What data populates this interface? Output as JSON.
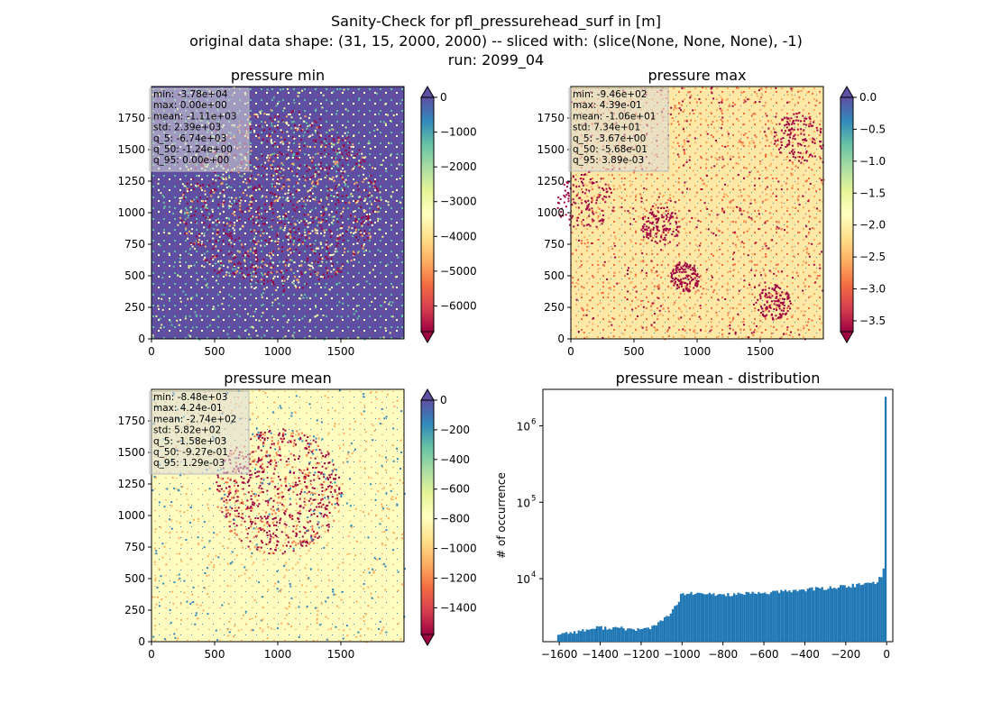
{
  "figure": {
    "title_lines": [
      "Sanity-Check for pfl_pressurehead_surf in [m]",
      "original data shape: (31, 15, 2000, 2000) -- sliced with: (slice(None, None, None), -1)",
      "run: 2099_04"
    ]
  },
  "colors": {
    "spectral": [
      "#9e0142",
      "#d53e4f",
      "#f46d43",
      "#fdae61",
      "#fee08b",
      "#ffffbf",
      "#e6f598",
      "#abdda4",
      "#66c2a5",
      "#3288bd",
      "#5e4fa2"
    ],
    "hist_bar": "#1f77b4",
    "stats_box_bg": "#d9d9d9"
  },
  "chart_data": [
    {
      "id": "pmin",
      "type": "heatmap",
      "title": "pressure min",
      "xlim": [
        0,
        2000
      ],
      "ylim": [
        0,
        2000
      ],
      "xticks": [
        0,
        500,
        1000,
        1500
      ],
      "yticks": [
        0,
        250,
        500,
        750,
        1000,
        1250,
        1500,
        1750
      ],
      "dominant": "low-pressure cluster in center, mostly near-zero (blue) elsewhere",
      "stats": [
        "min: -3.78e+04",
        "max: 0.00e+00",
        "mean: -1.11e+03",
        "std: 2.39e+03",
        "q_5: -6.74e+03",
        "q_50: -1.24e+00",
        "q_95: 0.00e+00"
      ],
      "colorbar": {
        "vmin": -6740,
        "vmax": 0,
        "ticks": [
          0,
          -1000,
          -2000,
          -3000,
          -4000,
          -5000,
          -6000
        ],
        "tick_labels": [
          "0",
          "−1000",
          "−2000",
          "−3000",
          "−4000",
          "−5000",
          "−6000"
        ],
        "extend": "both"
      }
    },
    {
      "id": "pmax",
      "type": "heatmap",
      "title": "pressure max",
      "xlim": [
        0,
        2000
      ],
      "ylim": [
        0,
        2000
      ],
      "xticks": [
        0,
        500,
        1000,
        1500
      ],
      "yticks": [
        0,
        250,
        500,
        750,
        1000,
        1250,
        1500,
        1750
      ],
      "dominant": "mostly light yellow/orange with dark-red patches",
      "stats": [
        "min: -9.46e+02",
        "max: 4.39e-01",
        "mean: -1.06e+01",
        "std: 7.34e+01",
        "q_5: -3.67e+00",
        "q_50: -5.68e-01",
        "q_95: 3.89e-03"
      ],
      "colorbar": {
        "vmin": -3.67,
        "vmax": 0,
        "ticks": [
          0.0,
          -0.5,
          -1.0,
          -1.5,
          -2.0,
          -2.5,
          -3.0,
          -3.5
        ],
        "tick_labels": [
          "0.0",
          "−0.5",
          "−1.0",
          "−1.5",
          "−2.0",
          "−2.5",
          "−3.0",
          "−3.5"
        ],
        "extend": "both"
      }
    },
    {
      "id": "pmean",
      "type": "heatmap",
      "title": "pressure mean",
      "xlim": [
        0,
        2000
      ],
      "ylim": [
        0,
        2000
      ],
      "xticks": [
        0,
        500,
        1000,
        1500
      ],
      "yticks": [
        0,
        250,
        500,
        750,
        1000,
        1250,
        1500,
        1750
      ],
      "dominant": "mostly light yellow with dark-red cluster in center",
      "stats": [
        "min: -8.48e+03",
        "max: 4.24e-01",
        "mean: -2.74e+02",
        "std: 5.82e+02",
        "q_5: -1.58e+03",
        "q_50: -9.27e-01",
        "q_95: 1.29e-03"
      ],
      "colorbar": {
        "vmin": -1580,
        "vmax": 0,
        "ticks": [
          0,
          -200,
          -400,
          -600,
          -800,
          -1000,
          -1200,
          -1400
        ],
        "tick_labels": [
          "0",
          "−200",
          "−400",
          "−600",
          "−800",
          "−1000",
          "−1200",
          "−1400"
        ],
        "extend": "both"
      }
    },
    {
      "id": "hist",
      "type": "bar",
      "title": "pressure mean - distribution",
      "xlabel": "",
      "ylabel": "# of occurrence",
      "yscale": "log",
      "xlim": [
        -1680,
        30
      ],
      "ylim": [
        1500,
        3000000
      ],
      "xticks": [
        -1600,
        -1400,
        -1200,
        -1000,
        -800,
        -600,
        -400,
        -200,
        0
      ],
      "xtick_labels": [
        "−1600",
        "−1400",
        "−1200",
        "−1000",
        "−800",
        "−600",
        "−400",
        "−200",
        "0"
      ],
      "yticks": [
        10000,
        100000,
        1000000
      ],
      "ytick_labels": [
        "10",
        "10",
        "10"
      ],
      "ytick_exponents": [
        "4",
        "5",
        "6"
      ],
      "bin_width": 10,
      "x": [
        -1600,
        -1500,
        -1400,
        -1300,
        -1200,
        -1150,
        -1100,
        -1050,
        -1020,
        -1000,
        -980,
        -900,
        -800,
        -700,
        -600,
        -500,
        -400,
        -300,
        -200,
        -100,
        -50,
        -30,
        -20,
        -10,
        -5,
        0
      ],
      "y": [
        1900,
        2050,
        2300,
        2250,
        2150,
        2300,
        2700,
        3600,
        4500,
        6000,
        6400,
        6300,
        6200,
        6300,
        6500,
        6800,
        7200,
        7500,
        7900,
        8500,
        9000,
        10000,
        11000,
        13000,
        22000,
        2400000
      ]
    }
  ]
}
